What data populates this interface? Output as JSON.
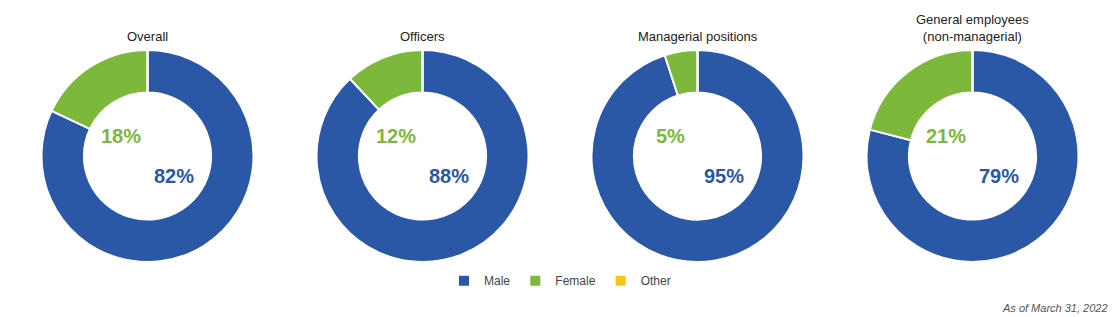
{
  "chart_data": [
    {
      "type": "pie",
      "title": "Overall",
      "categories": [
        "Male",
        "Female",
        "Other"
      ],
      "values": [
        82,
        18,
        0.001
      ],
      "value_labels": [
        "82%",
        "18%",
        null
      ],
      "data_labels": true,
      "colors": [
        "#2B57A7",
        "#7CB83B",
        "#F5C518"
      ],
      "legend": "bottom"
    },
    {
      "type": "pie",
      "title": "Officers",
      "categories": [
        "Male",
        "Female",
        "Other"
      ],
      "values": [
        88,
        12,
        0.001
      ],
      "value_labels": [
        "88%",
        "12%",
        null
      ],
      "data_labels": true,
      "colors": [
        "#2B57A7",
        "#7CB83B",
        "#F5C518"
      ],
      "legend": "bottom"
    },
    {
      "type": "pie",
      "title": "Managerial positions",
      "categories": [
        "Male",
        "Female",
        "Other"
      ],
      "values": [
        95,
        5,
        0.001
      ],
      "value_labels": [
        "95%",
        "5%",
        null
      ],
      "data_labels": true,
      "colors": [
        "#2B57A7",
        "#7CB83B",
        "#F5C518"
      ],
      "legend": "bottom"
    },
    {
      "type": "pie",
      "title": "General employees\n(non-managerial)",
      "categories": [
        "Male",
        "Female",
        "Other"
      ],
      "values": [
        79,
        21,
        0.001
      ],
      "value_labels": [
        "79%",
        "21%",
        null
      ],
      "data_labels": true,
      "colors": [
        "#2B57A7",
        "#7CB83B",
        "#F5C518"
      ],
      "legend": "bottom",
      "annotations": [
        "As of March 31, 2022"
      ]
    }
  ]
}
